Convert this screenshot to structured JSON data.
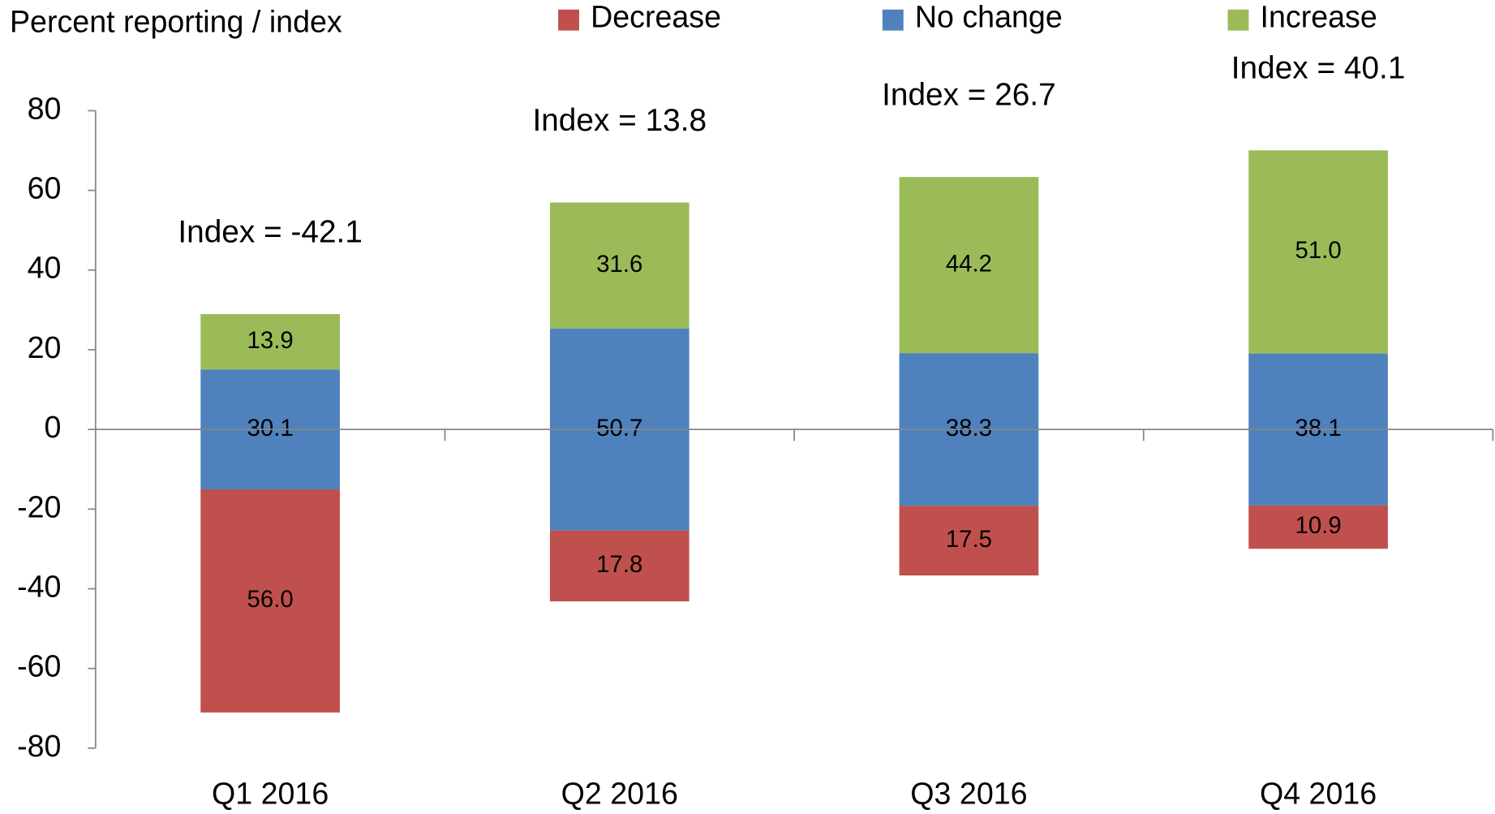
{
  "chart_data": {
    "type": "diverging_bar",
    "ylabel": "Percent reporting / index",
    "categories": [
      "Q1 2016",
      "Q2 2016",
      "Q3 2016",
      "Q4 2016"
    ],
    "series": [
      {
        "name": "Decrease",
        "color": "#c0504d",
        "values": [
          56.0,
          17.8,
          17.5,
          10.9
        ],
        "value_labels": [
          "56.0",
          "17.8",
          "17.5",
          "10.9"
        ]
      },
      {
        "name": "No change",
        "color": "#4f81bd",
        "values": [
          30.1,
          50.7,
          38.3,
          38.1
        ],
        "value_labels": [
          "30.1",
          "50.7",
          "38.3",
          "38.1"
        ]
      },
      {
        "name": "Increase",
        "color": "#9bbb59",
        "values": [
          13.9,
          31.6,
          44.2,
          51.0
        ],
        "value_labels": [
          "13.9",
          "31.6",
          "44.2",
          "51.0"
        ]
      }
    ],
    "annotations": [
      "Index = -42.1",
      "Index = 13.8",
      "Index = 26.7",
      "Index = 40.1"
    ],
    "ylim": [
      -80,
      80
    ],
    "yticks": [
      -80,
      -60,
      -40,
      -20,
      0,
      20,
      40,
      60,
      80
    ],
    "grid": false
  }
}
